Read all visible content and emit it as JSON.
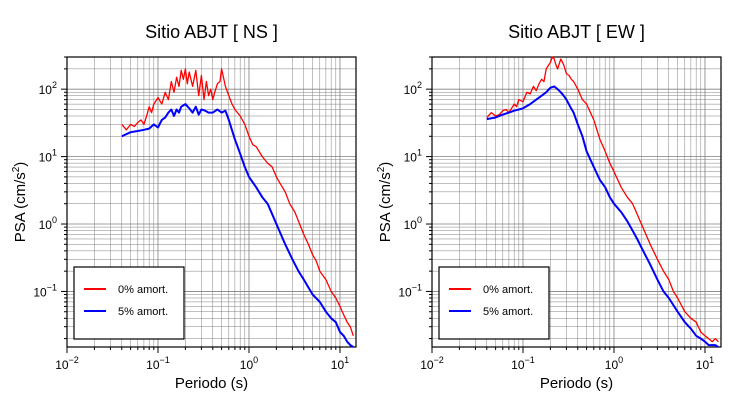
{
  "chart_data": [
    {
      "type": "line",
      "title": "Sitio ABJT [ NS ]",
      "xlabel": "Periodo (s)",
      "ylabel_main": "PSA (cm/s",
      "ylabel_sup": "2",
      "ylabel_tail": ")",
      "xscale": "log",
      "yscale": "log",
      "xlim": [
        0.01,
        15
      ],
      "ylim": [
        0.015,
        300
      ],
      "grid": true,
      "legend_position": "bottom-left",
      "x_ticks": [
        {
          "base": "10",
          "exp": "−2",
          "value": 0.01
        },
        {
          "base": "10",
          "exp": "−1",
          "value": 0.1
        },
        {
          "base": "10",
          "exp": "0",
          "value": 1
        },
        {
          "base": "10",
          "exp": "1",
          "value": 10
        }
      ],
      "y_ticks": [
        {
          "base": "10",
          "exp": "−1",
          "value": 0.1
        },
        {
          "base": "10",
          "exp": "0",
          "value": 1
        },
        {
          "base": "10",
          "exp": "1",
          "value": 10
        },
        {
          "base": "10",
          "exp": "2",
          "value": 100
        }
      ],
      "series": [
        {
          "name": "0% amort.",
          "color": "#ff0000",
          "x": [
            0.04,
            0.045,
            0.05,
            0.055,
            0.06,
            0.065,
            0.07,
            0.075,
            0.08,
            0.085,
            0.09,
            0.1,
            0.11,
            0.12,
            0.13,
            0.14,
            0.15,
            0.16,
            0.17,
            0.18,
            0.19,
            0.2,
            0.21,
            0.22,
            0.24,
            0.26,
            0.28,
            0.3,
            0.32,
            0.34,
            0.36,
            0.38,
            0.4,
            0.42,
            0.45,
            0.48,
            0.5,
            0.55,
            0.6,
            0.65,
            0.7,
            0.8,
            0.9,
            1.0,
            1.1,
            1.2,
            1.4,
            1.6,
            1.8,
            2.0,
            2.2,
            2.5,
            2.8,
            3.2,
            3.6,
            4.0,
            4.5,
            5.0,
            5.5,
            6.0,
            7.0,
            8.0,
            9.0,
            10.0,
            11.0,
            12.0,
            13.0,
            14.0
          ],
          "y": [
            30,
            25,
            30,
            28,
            32,
            35,
            30,
            40,
            55,
            45,
            60,
            75,
            60,
            90,
            70,
            130,
            90,
            150,
            110,
            190,
            140,
            200,
            120,
            180,
            110,
            190,
            80,
            160,
            70,
            130,
            80,
            100,
            70,
            90,
            120,
            130,
            200,
            110,
            80,
            60,
            50,
            40,
            30,
            20,
            15,
            14,
            10,
            8,
            7,
            5,
            4,
            3,
            2,
            1.5,
            1.0,
            0.7,
            0.5,
            0.35,
            0.28,
            0.2,
            0.15,
            0.1,
            0.08,
            0.06,
            0.045,
            0.035,
            0.03,
            0.022
          ]
        },
        {
          "name": "5% amort.",
          "color": "#0000ff",
          "x": [
            0.04,
            0.05,
            0.06,
            0.07,
            0.08,
            0.09,
            0.1,
            0.11,
            0.12,
            0.13,
            0.14,
            0.15,
            0.16,
            0.17,
            0.18,
            0.2,
            0.22,
            0.24,
            0.26,
            0.28,
            0.3,
            0.33,
            0.36,
            0.4,
            0.45,
            0.5,
            0.55,
            0.6,
            0.7,
            0.8,
            0.9,
            1.0,
            1.2,
            1.4,
            1.6,
            1.8,
            2.0,
            2.5,
            3.0,
            3.5,
            4.0,
            5.0,
            6.0,
            7.0,
            8.0,
            9.0,
            10.0,
            11.0,
            12.0,
            13.0,
            14.0
          ],
          "y": [
            20,
            23,
            24,
            25,
            26,
            30,
            27,
            35,
            38,
            45,
            50,
            40,
            50,
            45,
            55,
            60,
            52,
            45,
            55,
            42,
            50,
            48,
            45,
            45,
            50,
            45,
            48,
            35,
            18,
            11,
            7,
            5,
            3.5,
            2.5,
            2,
            1.4,
            1.0,
            0.5,
            0.3,
            0.2,
            0.15,
            0.09,
            0.07,
            0.05,
            0.04,
            0.035,
            0.025,
            0.022,
            0.018,
            0.016,
            0.015
          ]
        }
      ]
    },
    {
      "type": "line",
      "title": "Sitio ABJT [ EW ]",
      "xlabel": "Periodo (s)",
      "ylabel_main": "PSA (cm/s",
      "ylabel_sup": "2",
      "ylabel_tail": ")",
      "xscale": "log",
      "yscale": "log",
      "xlim": [
        0.01,
        15
      ],
      "ylim": [
        0.015,
        300
      ],
      "grid": true,
      "legend_position": "bottom-left",
      "x_ticks": [
        {
          "base": "10",
          "exp": "−2",
          "value": 0.01
        },
        {
          "base": "10",
          "exp": "−1",
          "value": 0.1
        },
        {
          "base": "10",
          "exp": "0",
          "value": 1
        },
        {
          "base": "10",
          "exp": "1",
          "value": 10
        }
      ],
      "y_ticks": [
        {
          "base": "10",
          "exp": "−1",
          "value": 0.1
        },
        {
          "base": "10",
          "exp": "0",
          "value": 1
        },
        {
          "base": "10",
          "exp": "1",
          "value": 10
        },
        {
          "base": "10",
          "exp": "2",
          "value": 100
        }
      ],
      "series": [
        {
          "name": "0% amort.",
          "color": "#ff0000",
          "x": [
            0.04,
            0.045,
            0.05,
            0.055,
            0.06,
            0.065,
            0.07,
            0.075,
            0.08,
            0.085,
            0.09,
            0.1,
            0.11,
            0.12,
            0.13,
            0.14,
            0.15,
            0.16,
            0.17,
            0.18,
            0.2,
            0.21,
            0.22,
            0.23,
            0.24,
            0.26,
            0.28,
            0.3,
            0.32,
            0.34,
            0.36,
            0.4,
            0.45,
            0.5,
            0.6,
            0.7,
            0.8,
            0.9,
            1.0,
            1.2,
            1.4,
            1.6,
            1.8,
            2.0,
            2.5,
            3.0,
            3.5,
            4.0,
            4.5,
            5.0,
            6.0,
            7.0,
            8.0,
            9.0,
            10.0,
            11.0,
            12.0,
            13.0,
            14.0
          ],
          "y": [
            38,
            45,
            40,
            42,
            48,
            50,
            45,
            52,
            60,
            55,
            70,
            65,
            90,
            85,
            110,
            95,
            120,
            140,
            130,
            200,
            250,
            300,
            280,
            230,
            200,
            280,
            230,
            170,
            160,
            140,
            130,
            100,
            70,
            60,
            35,
            18,
            12,
            8,
            6,
            3.5,
            2.5,
            2.0,
            1.4,
            1.0,
            0.5,
            0.3,
            0.2,
            0.15,
            0.1,
            0.08,
            0.05,
            0.04,
            0.035,
            0.025,
            0.022,
            0.02,
            0.018,
            0.02,
            0.018
          ]
        },
        {
          "name": "5% amort.",
          "color": "#0000ff",
          "x": [
            0.04,
            0.05,
            0.06,
            0.07,
            0.08,
            0.09,
            0.1,
            0.12,
            0.14,
            0.16,
            0.18,
            0.2,
            0.22,
            0.24,
            0.26,
            0.28,
            0.3,
            0.33,
            0.36,
            0.4,
            0.45,
            0.5,
            0.6,
            0.7,
            0.8,
            0.9,
            1.0,
            1.2,
            1.4,
            1.6,
            1.8,
            2.0,
            2.5,
            3.0,
            3.5,
            4.0,
            5.0,
            6.0,
            7.0,
            8.0,
            9.0,
            10.0,
            11.0,
            12.0,
            13.0,
            14.0
          ],
          "y": [
            36,
            38,
            42,
            45,
            48,
            50,
            52,
            60,
            70,
            80,
            90,
            105,
            110,
            100,
            90,
            80,
            70,
            55,
            45,
            30,
            20,
            12,
            7,
            4.5,
            3.5,
            2.5,
            2.0,
            1.5,
            1.1,
            0.8,
            0.6,
            0.45,
            0.25,
            0.15,
            0.1,
            0.08,
            0.05,
            0.035,
            0.028,
            0.022,
            0.02,
            0.018,
            0.016,
            0.016,
            0.016,
            0.015
          ]
        }
      ]
    }
  ]
}
